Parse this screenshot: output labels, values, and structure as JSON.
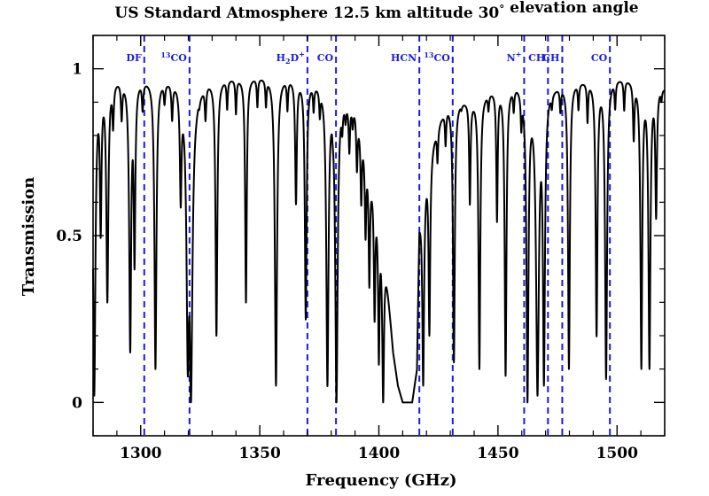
{
  "chart_data": {
    "type": "line",
    "title": "US Standard Atmosphere    12.5 km altitude    30° elevation angle",
    "xlabel": "Frequency (GHz)",
    "ylabel": "Transmission",
    "xlim": [
      1280,
      1520
    ],
    "ylim": [
      -0.1,
      1.1
    ],
    "x_ticks": [
      {
        "value": 1300,
        "label": "1300"
      },
      {
        "value": 1350,
        "label": "1350"
      },
      {
        "value": 1400,
        "label": "1400"
      },
      {
        "value": 1450,
        "label": "1450"
      },
      {
        "value": 1500,
        "label": "1500"
      }
    ],
    "y_ticks": [
      {
        "value": 0,
        "label": "0"
      },
      {
        "value": 0.5,
        "label": "0.5"
      },
      {
        "value": 1,
        "label": "1"
      }
    ],
    "baseline": [
      [
        1280,
        0.95
      ],
      [
        1283,
        0.98
      ],
      [
        1300,
        0.98
      ],
      [
        1315,
        0.975
      ],
      [
        1322,
        0.93
      ],
      [
        1328,
        0.975
      ],
      [
        1355,
        0.985
      ],
      [
        1368,
        0.98
      ],
      [
        1373,
        0.97
      ],
      [
        1380,
        0.96
      ],
      [
        1384,
        0.93
      ],
      [
        1387,
        0.92
      ],
      [
        1390,
        0.9
      ],
      [
        1393,
        0.82
      ],
      [
        1396,
        0.72
      ],
      [
        1399,
        0.62
      ],
      [
        1402,
        0.48
      ],
      [
        1404,
        0.32
      ],
      [
        1406,
        0.15
      ],
      [
        1408,
        0.05
      ],
      [
        1410,
        0.0
      ],
      [
        1414,
        0.0
      ],
      [
        1416,
        0.1
      ],
      [
        1417,
        0.55
      ],
      [
        1420,
        0.72
      ],
      [
        1423,
        0.8
      ],
      [
        1426,
        0.86
      ],
      [
        1429,
        0.9
      ],
      [
        1433,
        0.91
      ],
      [
        1440,
        0.92
      ],
      [
        1450,
        0.955
      ],
      [
        1458,
        0.965
      ],
      [
        1463,
        0.94
      ],
      [
        1466,
        0.93
      ],
      [
        1470,
        0.95
      ],
      [
        1480,
        0.97
      ],
      [
        1490,
        0.975
      ],
      [
        1500,
        0.98
      ],
      [
        1508,
        0.975
      ],
      [
        1515,
        0.97
      ],
      [
        1520,
        0.95
      ]
    ],
    "absorption_lines": [
      [
        1280.5,
        0.02,
        0.6
      ],
      [
        1283.2,
        0.5,
        0.4
      ],
      [
        1286.0,
        0.3,
        0.5
      ],
      [
        1288.4,
        0.82,
        0.35
      ],
      [
        1292.0,
        0.86,
        0.35
      ],
      [
        1295.6,
        0.15,
        0.5
      ],
      [
        1297.4,
        0.4,
        0.4
      ],
      [
        1300.8,
        0.88,
        0.35
      ],
      [
        1306.2,
        0.1,
        0.5
      ],
      [
        1310.0,
        0.9,
        0.35
      ],
      [
        1313.2,
        0.86,
        0.35
      ],
      [
        1316.8,
        0.62,
        0.4
      ],
      [
        1319.8,
        0.1,
        0.6
      ],
      [
        1321.1,
        0.0,
        0.7
      ],
      [
        1324.5,
        0.88,
        0.3
      ],
      [
        1327.2,
        0.85,
        0.35
      ],
      [
        1331.8,
        0.2,
        0.45
      ],
      [
        1336.3,
        0.88,
        0.3
      ],
      [
        1340.0,
        0.87,
        0.3
      ],
      [
        1344.2,
        0.3,
        0.4
      ],
      [
        1349.0,
        0.89,
        0.3
      ],
      [
        1352.6,
        0.9,
        0.3
      ],
      [
        1356.8,
        0.05,
        0.55
      ],
      [
        1361.6,
        0.88,
        0.3
      ],
      [
        1365.2,
        0.6,
        0.4
      ],
      [
        1369.3,
        0.25,
        0.45
      ],
      [
        1372.6,
        0.88,
        0.3
      ],
      [
        1375.2,
        0.88,
        0.3
      ],
      [
        1378.4,
        0.05,
        0.55
      ],
      [
        1380.6,
        0.88,
        0.3
      ],
      [
        1382.2,
        0.0,
        0.6
      ],
      [
        1384.6,
        0.8,
        0.3
      ],
      [
        1386.0,
        0.84,
        0.3
      ],
      [
        1387.6,
        0.75,
        0.35
      ],
      [
        1389.0,
        0.83,
        0.3
      ],
      [
        1390.8,
        0.7,
        0.35
      ],
      [
        1392.6,
        0.6,
        0.35
      ],
      [
        1394.4,
        0.5,
        0.35
      ],
      [
        1396.0,
        0.35,
        0.35
      ],
      [
        1398.2,
        0.25,
        0.35
      ],
      [
        1400.0,
        0.12,
        0.35
      ],
      [
        1401.8,
        0.0,
        0.45
      ],
      [
        1418.6,
        0.05,
        0.45
      ],
      [
        1421.2,
        0.2,
        0.4
      ],
      [
        1424.6,
        0.72,
        0.3
      ],
      [
        1428.0,
        0.78,
        0.3
      ],
      [
        1431.5,
        0.12,
        0.45
      ],
      [
        1434.6,
        0.88,
        0.3
      ],
      [
        1438.2,
        0.6,
        0.35
      ],
      [
        1442.2,
        0.1,
        0.45
      ],
      [
        1446.0,
        0.88,
        0.3
      ],
      [
        1449.6,
        0.55,
        0.35
      ],
      [
        1453.2,
        0.08,
        0.45
      ],
      [
        1456.6,
        0.88,
        0.3
      ],
      [
        1459.8,
        0.85,
        0.3
      ],
      [
        1462.4,
        0.0,
        0.5
      ],
      [
        1466.6,
        0.02,
        0.7
      ],
      [
        1469.3,
        0.05,
        0.5
      ],
      [
        1472.6,
        0.88,
        0.3
      ],
      [
        1476.2,
        0.88,
        0.3
      ],
      [
        1479.8,
        0.1,
        0.45
      ],
      [
        1483.8,
        0.88,
        0.3
      ],
      [
        1487.6,
        0.85,
        0.3
      ],
      [
        1491.4,
        0.2,
        0.45
      ],
      [
        1495.4,
        0.07,
        0.5
      ],
      [
        1499.2,
        0.88,
        0.3
      ],
      [
        1503.0,
        0.88,
        0.3
      ],
      [
        1507.0,
        0.8,
        0.35
      ],
      [
        1510.2,
        0.1,
        0.45
      ],
      [
        1513.6,
        0.1,
        0.5
      ],
      [
        1516.4,
        0.55,
        0.4
      ],
      [
        1518.6,
        0.9,
        0.3
      ]
    ],
    "markers": [
      {
        "freq": 1301.5,
        "label": "DF"
      },
      {
        "freq": 1320.5,
        "label": "13CO"
      },
      {
        "freq": 1370.0,
        "label": "H2D+"
      },
      {
        "freq": 1382.0,
        "label": "CO"
      },
      {
        "freq": 1417.0,
        "label": "HCN"
      },
      {
        "freq": 1431.0,
        "label": "13CO"
      },
      {
        "freq": 1461.0,
        "label": "N+"
      },
      {
        "freq": 1471.0,
        "label": "CH"
      },
      {
        "freq": 1477.0,
        "label": "CH"
      },
      {
        "freq": 1497.0,
        "label": "CO"
      }
    ],
    "colors": {
      "trace": "#000000",
      "markers": "#1a1ae6",
      "axes": "#000000"
    }
  }
}
